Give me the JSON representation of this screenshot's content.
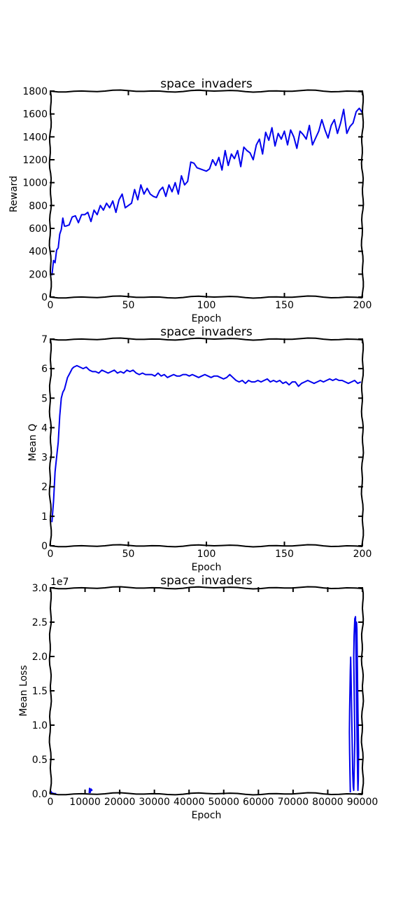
{
  "colors": {
    "series": "#0000ee",
    "axes": "#000000",
    "background": "#ffffff"
  },
  "chart_data": [
    {
      "type": "line",
      "title": "space_invaders",
      "xlabel": "Epoch",
      "ylabel": "Reward",
      "xlim": [
        0,
        200
      ],
      "ylim": [
        0,
        1800
      ],
      "xticks": [
        0,
        50,
        100,
        150,
        200
      ],
      "yticks": [
        0,
        200,
        400,
        600,
        800,
        1000,
        1200,
        1400,
        1600,
        1800
      ],
      "grid": false,
      "series": [
        {
          "x": [
            1,
            2,
            3,
            4,
            5,
            6,
            7,
            8,
            9,
            10,
            12,
            14,
            16,
            18,
            20,
            22,
            24,
            26,
            28,
            30,
            32,
            34,
            36,
            38,
            40,
            42,
            44,
            46,
            48,
            50,
            52,
            54,
            56,
            58,
            60,
            62,
            64,
            66,
            68,
            70,
            72,
            74,
            76,
            78,
            80,
            82,
            84,
            86,
            88,
            90,
            92,
            94,
            96,
            98,
            100,
            102,
            104,
            106,
            108,
            110,
            112,
            114,
            116,
            118,
            120,
            122,
            124,
            126,
            128,
            130,
            132,
            134,
            136,
            138,
            140,
            142,
            144,
            146,
            148,
            150,
            152,
            154,
            156,
            158,
            160,
            162,
            164,
            166,
            168,
            170,
            172,
            174,
            176,
            178,
            180,
            182,
            184,
            186,
            188,
            190,
            192,
            194,
            196,
            198,
            200
          ],
          "y": [
            190,
            320,
            300,
            410,
            430,
            550,
            590,
            690,
            620,
            620,
            630,
            700,
            710,
            650,
            720,
            720,
            740,
            660,
            760,
            720,
            800,
            760,
            820,
            780,
            840,
            740,
            850,
            900,
            780,
            800,
            820,
            940,
            850,
            980,
            900,
            950,
            900,
            880,
            870,
            930,
            960,
            880,
            980,
            920,
            1000,
            900,
            1060,
            980,
            1010,
            1180,
            1170,
            1130,
            1120,
            1110,
            1100,
            1120,
            1200,
            1150,
            1220,
            1110,
            1280,
            1150,
            1250,
            1210,
            1280,
            1140,
            1310,
            1280,
            1260,
            1200,
            1330,
            1380,
            1250,
            1440,
            1370,
            1480,
            1320,
            1430,
            1380,
            1450,
            1330,
            1460,
            1400,
            1300,
            1450,
            1420,
            1380,
            1500,
            1330,
            1390,
            1450,
            1550,
            1460,
            1390,
            1500,
            1550,
            1430,
            1520,
            1640,
            1430,
            1490,
            1520,
            1620,
            1650,
            1610
          ]
        }
      ]
    },
    {
      "type": "line",
      "title": "space_invaders",
      "xlabel": "Epoch",
      "ylabel": "Mean Q",
      "xlim": [
        0,
        200
      ],
      "ylim": [
        0,
        7
      ],
      "xticks": [
        0,
        50,
        100,
        150,
        200
      ],
      "yticks": [
        0,
        1,
        2,
        3,
        4,
        5,
        6,
        7
      ],
      "grid": false,
      "series": [
        {
          "x": [
            1,
            2,
            3,
            4,
            5,
            6,
            7,
            8,
            9,
            10,
            11,
            12,
            13,
            14,
            15,
            17,
            19,
            21,
            23,
            25,
            27,
            29,
            31,
            33,
            35,
            37,
            39,
            41,
            43,
            45,
            47,
            49,
            51,
            53,
            55,
            57,
            59,
            61,
            63,
            65,
            67,
            69,
            71,
            73,
            75,
            77,
            79,
            81,
            83,
            85,
            87,
            89,
            91,
            93,
            95,
            97,
            99,
            101,
            103,
            105,
            107,
            109,
            111,
            113,
            115,
            117,
            119,
            121,
            123,
            125,
            127,
            129,
            131,
            133,
            135,
            137,
            139,
            141,
            143,
            145,
            147,
            149,
            151,
            153,
            155,
            157,
            159,
            161,
            163,
            165,
            167,
            169,
            171,
            173,
            175,
            177,
            179,
            181,
            183,
            185,
            187,
            189,
            191,
            193,
            195,
            197,
            199
          ],
          "y": [
            0.8,
            1.5,
            2.5,
            3.0,
            3.5,
            4.4,
            5.0,
            5.2,
            5.3,
            5.5,
            5.7,
            5.8,
            5.9,
            6.0,
            6.05,
            6.1,
            6.05,
            6.0,
            6.05,
            5.95,
            5.9,
            5.9,
            5.85,
            5.95,
            5.9,
            5.85,
            5.9,
            5.95,
            5.85,
            5.9,
            5.85,
            5.95,
            5.9,
            5.95,
            5.85,
            5.8,
            5.85,
            5.8,
            5.8,
            5.8,
            5.75,
            5.85,
            5.75,
            5.8,
            5.7,
            5.75,
            5.8,
            5.75,
            5.75,
            5.8,
            5.8,
            5.75,
            5.8,
            5.75,
            5.7,
            5.75,
            5.8,
            5.75,
            5.7,
            5.75,
            5.75,
            5.7,
            5.65,
            5.7,
            5.8,
            5.7,
            5.6,
            5.55,
            5.6,
            5.5,
            5.6,
            5.55,
            5.55,
            5.6,
            5.55,
            5.6,
            5.65,
            5.55,
            5.6,
            5.55,
            5.6,
            5.5,
            5.55,
            5.45,
            5.55,
            5.55,
            5.4,
            5.5,
            5.55,
            5.6,
            5.55,
            5.5,
            5.55,
            5.6,
            5.55,
            5.6,
            5.65,
            5.6,
            5.65,
            5.6,
            5.6,
            5.55,
            5.5,
            5.55,
            5.6,
            5.5,
            5.55
          ]
        }
      ]
    },
    {
      "type": "line",
      "title": "space_invaders",
      "xlabel": "Epoch",
      "ylabel": "Mean Loss",
      "offset_label": "1e7",
      "xlim": [
        0,
        90000
      ],
      "ylim": [
        0,
        3.0
      ],
      "xticks": [
        0,
        10000,
        20000,
        30000,
        40000,
        50000,
        60000,
        70000,
        80000,
        90000
      ],
      "yticks": [
        "0.0",
        "0.5",
        "1.0",
        "1.5",
        "2.0",
        "2.5",
        "3.0"
      ],
      "grid": false,
      "series": [
        {
          "x": [
            0,
            200,
            500,
            900,
            1300,
            1700
          ],
          "y": [
            0.05,
            0.03,
            0.01,
            0.005,
            0.003,
            0.002
          ]
        },
        {
          "x": [
            11200,
            11300,
            11500,
            11700,
            11900,
            12100
          ],
          "y": [
            0.01,
            0.08,
            0.02,
            0.07,
            0.05,
            0.06
          ]
        },
        {
          "x": [
            86500,
            86400,
            86300,
            86250,
            86300,
            86400,
            86500,
            86600,
            86700,
            86800,
            86900,
            87000,
            87100,
            87200,
            87350,
            87500,
            87650,
            87800,
            87700,
            87600,
            87500,
            87600,
            87800,
            88000,
            88100,
            88200,
            88300,
            88400,
            88500,
            88600,
            88700,
            88800,
            88900,
            88700,
            88600,
            88500,
            88400,
            88300,
            88200
          ],
          "y": [
            0.02,
            0.3,
            0.6,
            0.9,
            1.2,
            1.5,
            1.8,
            1.99,
            1.8,
            1.5,
            1.2,
            0.9,
            0.6,
            0.3,
            0.1,
            0.05,
            0.4,
            0.8,
            1.2,
            1.6,
            2.0,
            2.3,
            2.55,
            2.58,
            2.2,
            1.8,
            1.4,
            1.0,
            0.6,
            0.3,
            0.05,
            0.2,
            0.6,
            1.2,
            1.6,
            2.0,
            2.4,
            2.5,
            2.0
          ]
        }
      ]
    }
  ]
}
